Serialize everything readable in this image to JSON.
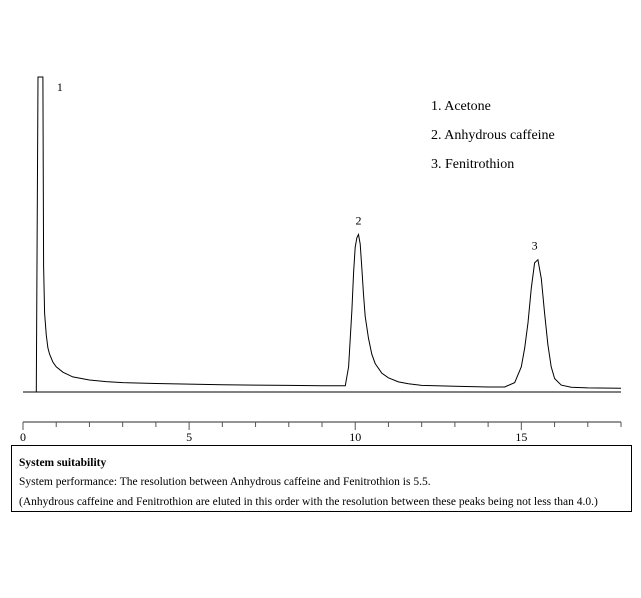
{
  "chart_data": {
    "type": "line",
    "xlabel": "",
    "ylabel": "",
    "xlim": [
      0,
      18
    ],
    "x_ticks": [
      0,
      5,
      10,
      15
    ],
    "ylim": [
      0,
      100
    ],
    "grid": false,
    "legend_position": "top-right",
    "legend": [
      "1. Acetone",
      "2. Anhydrous caffeine",
      "3. Fenitrothion"
    ],
    "peaks": [
      {
        "label": "1",
        "name": "Acetone",
        "x": 0.6,
        "y": 100
      },
      {
        "label": "2",
        "name": "Anhydrous caffeine",
        "x": 10.1,
        "y": 50
      },
      {
        "label": "3",
        "name": "Fenitrothion",
        "x": 15.4,
        "y": 42
      }
    ],
    "series": [
      {
        "x": [
          0.4,
          0.45,
          0.5,
          0.55,
          0.6,
          0.62,
          0.65,
          0.7,
          0.75,
          0.8,
          0.9,
          1.0,
          1.2,
          1.5,
          2.0,
          2.5,
          3,
          4,
          5,
          6,
          7,
          8,
          9,
          9.7,
          9.8,
          9.9,
          9.95,
          10.0,
          10.05,
          10.1,
          10.15,
          10.2,
          10.25,
          10.3,
          10.4,
          10.5,
          10.6,
          10.8,
          11.0,
          11.3,
          11.6,
          12,
          13,
          14,
          14.5,
          14.8,
          15.0,
          15.1,
          15.2,
          15.3,
          15.4,
          15.5,
          15.6,
          15.7,
          15.8,
          15.9,
          16.0,
          16.2,
          16.5,
          17,
          18
        ],
        "y": [
          0,
          100,
          100,
          100,
          100,
          40,
          25,
          18,
          14,
          12,
          9.5,
          8,
          6.3,
          4.8,
          3.8,
          3.3,
          3,
          2.7,
          2.5,
          2.3,
          2.2,
          2.1,
          2,
          2,
          8,
          26,
          38,
          46,
          49,
          50,
          47,
          39,
          31,
          24,
          17,
          12,
          9,
          6,
          4.5,
          3.2,
          2.6,
          2.1,
          1.8,
          1.6,
          1.6,
          3,
          8,
          14,
          22,
          33,
          41,
          42,
          36,
          25,
          15,
          8,
          4.3,
          2.2,
          1.5,
          1.3,
          1.2
        ]
      }
    ]
  },
  "system_suitability": {
    "title": "System suitability",
    "performance": "System performance: The resolution between Anhydrous caffeine and Fenitrothion is 5.5.",
    "note": "(Anhydrous caffeine and Fenitrothion are eluted in this order with the resolution between these peaks being not less than 4.0.)"
  }
}
